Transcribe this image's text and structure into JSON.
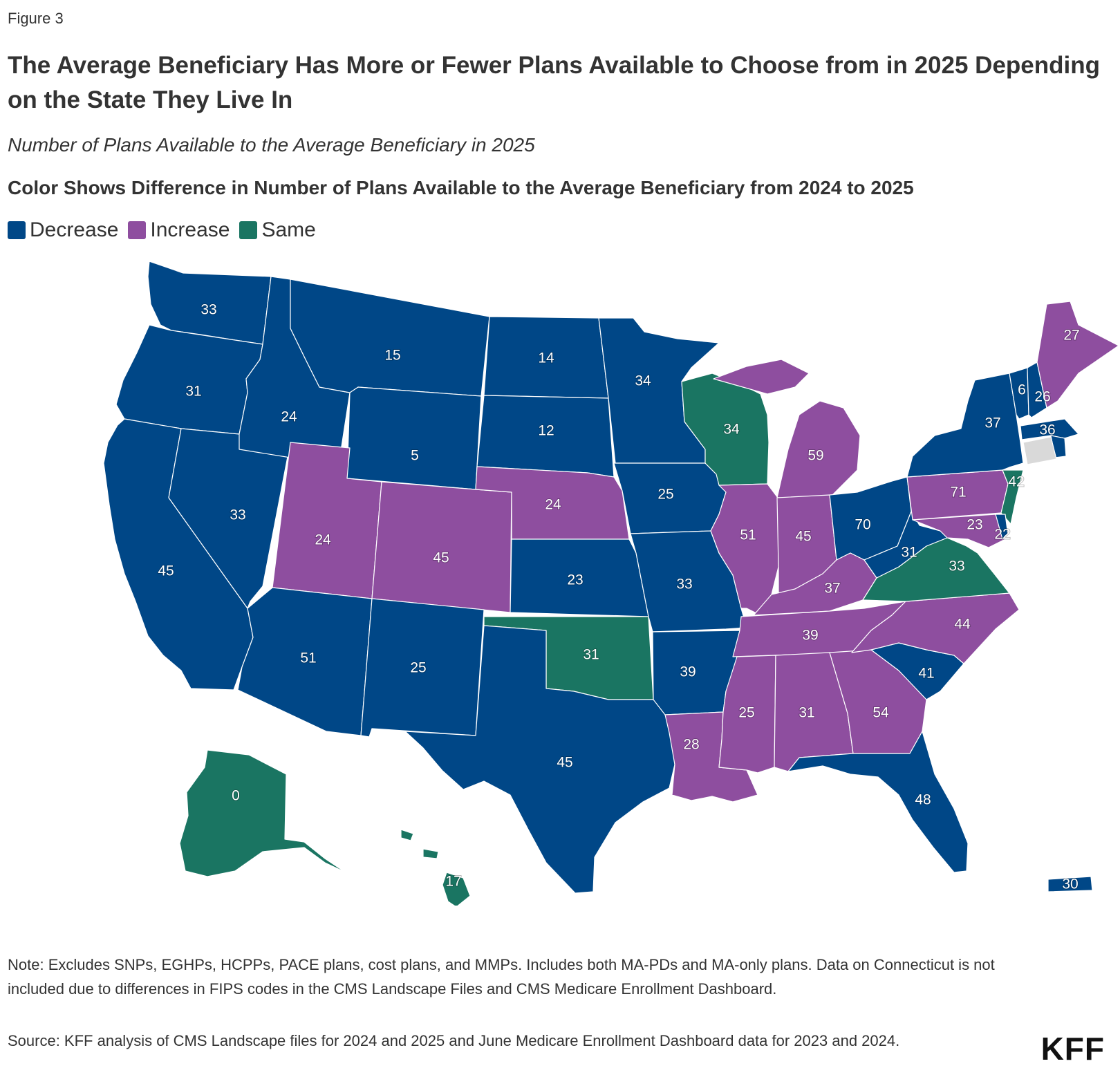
{
  "figure_label": "Figure 3",
  "title": "The Average Beneficiary Has More or Fewer Plans Available to Choose from in 2025 Depending on the State They Live In",
  "subtitle": "Number of Plans Available to the Average Beneficiary in 2025",
  "legend_title": "Color Shows Difference in Number of Plans Available to the Average Beneficiary from 2024 to 2025",
  "legend": [
    {
      "label": "Decrease",
      "color": "#004787"
    },
    {
      "label": "Increase",
      "color": "#8e4e9f"
    },
    {
      "label": "Same",
      "color": "#1a7562"
    }
  ],
  "no_data_color": "#d9d9d9",
  "states": [
    {
      "code": "WA",
      "value": 33,
      "change": "Decrease"
    },
    {
      "code": "OR",
      "value": 31,
      "change": "Decrease"
    },
    {
      "code": "CA",
      "value": 45,
      "change": "Decrease"
    },
    {
      "code": "NV",
      "value": 33,
      "change": "Decrease"
    },
    {
      "code": "ID",
      "value": 24,
      "change": "Decrease"
    },
    {
      "code": "MT",
      "value": 15,
      "change": "Decrease"
    },
    {
      "code": "WY",
      "value": 5,
      "change": "Decrease"
    },
    {
      "code": "UT",
      "value": 24,
      "change": "Increase"
    },
    {
      "code": "AZ",
      "value": 51,
      "change": "Decrease"
    },
    {
      "code": "CO",
      "value": 45,
      "change": "Increase"
    },
    {
      "code": "NM",
      "value": 25,
      "change": "Decrease"
    },
    {
      "code": "ND",
      "value": 14,
      "change": "Decrease"
    },
    {
      "code": "SD",
      "value": 12,
      "change": "Decrease"
    },
    {
      "code": "NE",
      "value": 24,
      "change": "Increase"
    },
    {
      "code": "KS",
      "value": 23,
      "change": "Decrease"
    },
    {
      "code": "OK",
      "value": 31,
      "change": "Same"
    },
    {
      "code": "TX",
      "value": 45,
      "change": "Decrease"
    },
    {
      "code": "MN",
      "value": 34,
      "change": "Decrease"
    },
    {
      "code": "IA",
      "value": 25,
      "change": "Decrease"
    },
    {
      "code": "MO",
      "value": 33,
      "change": "Decrease"
    },
    {
      "code": "AR",
      "value": 39,
      "change": "Decrease"
    },
    {
      "code": "LA",
      "value": 28,
      "change": "Increase"
    },
    {
      "code": "WI",
      "value": 34,
      "change": "Same"
    },
    {
      "code": "IL",
      "value": 51,
      "change": "Increase"
    },
    {
      "code": "MI",
      "value": 59,
      "change": "Increase"
    },
    {
      "code": "IN",
      "value": 45,
      "change": "Increase"
    },
    {
      "code": "OH",
      "value": 70,
      "change": "Decrease"
    },
    {
      "code": "KY",
      "value": 37,
      "change": "Increase"
    },
    {
      "code": "TN",
      "value": 39,
      "change": "Increase"
    },
    {
      "code": "MS",
      "value": 25,
      "change": "Increase"
    },
    {
      "code": "AL",
      "value": 31,
      "change": "Increase"
    },
    {
      "code": "GA",
      "value": 54,
      "change": "Increase"
    },
    {
      "code": "FL",
      "value": 48,
      "change": "Decrease"
    },
    {
      "code": "SC",
      "value": 41,
      "change": "Decrease"
    },
    {
      "code": "NC",
      "value": 44,
      "change": "Increase"
    },
    {
      "code": "VA",
      "value": 33,
      "change": "Same"
    },
    {
      "code": "WV",
      "value": 31,
      "change": "Decrease"
    },
    {
      "code": "PA",
      "value": 71,
      "change": "Increase"
    },
    {
      "code": "NY",
      "value": 37,
      "change": "Decrease"
    },
    {
      "code": "NJ",
      "value": 42,
      "change": "Same"
    },
    {
      "code": "MD",
      "value": 23,
      "change": "Increase"
    },
    {
      "code": "DE",
      "value": 22,
      "change": "Decrease"
    },
    {
      "code": "VT",
      "value": 6,
      "change": "Decrease"
    },
    {
      "code": "NH",
      "value": 26,
      "change": "Decrease"
    },
    {
      "code": "ME",
      "value": 27,
      "change": "Increase"
    },
    {
      "code": "MA",
      "value": 36,
      "change": "Decrease"
    },
    {
      "code": "RI",
      "value": null,
      "change": "Decrease"
    },
    {
      "code": "CT",
      "value": null,
      "change": "No data"
    },
    {
      "code": "AK",
      "value": 0,
      "change": "Same"
    },
    {
      "code": "HI",
      "value": 17,
      "change": "Same"
    },
    {
      "code": "PR",
      "value": 30,
      "change": "Decrease"
    }
  ],
  "note": "Note: Excludes SNPs, EGHPs, HCPPs, PACE plans, cost plans, and MMPs. Includes both MA-PDs and MA-only plans. Data on Connecticut is not included due to differences in FIPS codes in the CMS Landscape Files and CMS Medicare Enrollment Dashboard.",
  "source": "Source: KFF analysis of CMS Landscape files for 2024 and 2025 and June Medicare Enrollment Dashboard data for 2023 and 2024.",
  "logo": "KFF"
}
